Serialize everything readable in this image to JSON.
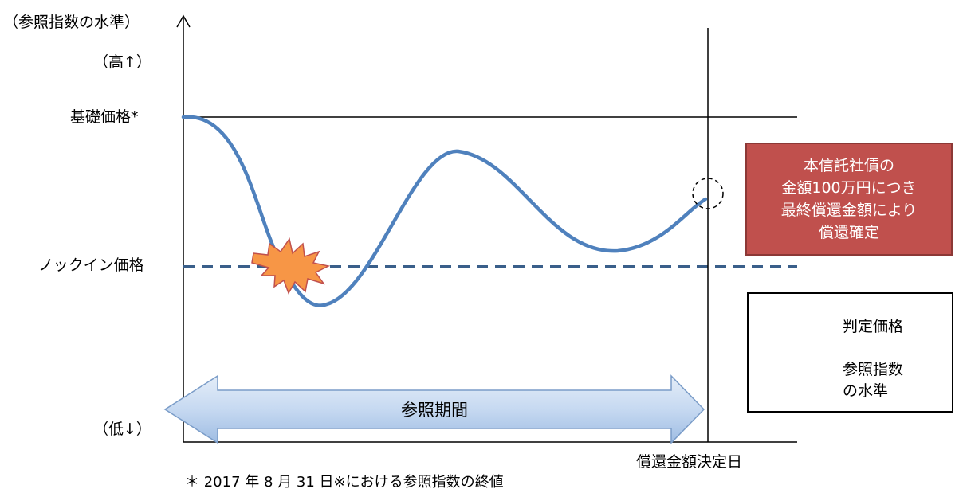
{
  "axis": {
    "y_title": "（参照指数の水準）",
    "high_label": "（高↑）",
    "low_label": "（低↓）"
  },
  "levels": {
    "base_price": "基礎価格*",
    "knock_in_price": "ノックイン価格"
  },
  "period": {
    "label": "参照期間"
  },
  "redemption_date": "償還金額決定日",
  "callout": {
    "lines": [
      "本信託社債の",
      "金額100万円につき",
      "最終償還金額により",
      "償還確定"
    ],
    "fill": "#c0504d"
  },
  "legend": {
    "judgment_price": "判定価格",
    "reference_index_line1": "参照指数",
    "reference_index_line2": "の水準"
  },
  "footnote": "＊ 2017 年 8 月 31 日※における参照指数の終値",
  "colors": {
    "index_line": "#4f81bd",
    "knock_in_dash": "#3a5f8a",
    "burst": "#f79646",
    "period_arrow": "#c6d9f1"
  }
}
